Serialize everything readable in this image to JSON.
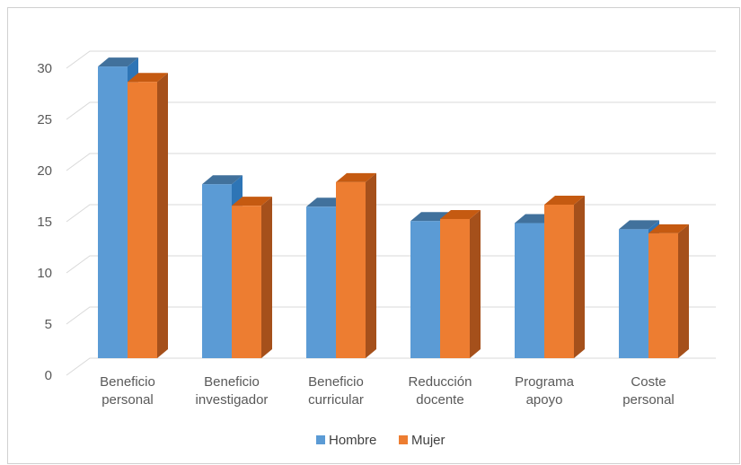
{
  "chart_data": {
    "type": "bar",
    "style": "3d-clustered-column",
    "categories": [
      [
        "Beneficio",
        "personal"
      ],
      [
        "Beneficio",
        "investigador"
      ],
      [
        "Beneficio",
        "curricular"
      ],
      [
        "Reducción",
        "docente"
      ],
      [
        "Programa",
        "apoyo"
      ],
      [
        "Coste",
        "personal"
      ]
    ],
    "series": [
      {
        "name": "Hombre",
        "values": [
          28.5,
          17.0,
          14.8,
          13.4,
          13.2,
          12.6
        ],
        "color": "#5b9bd5",
        "side_color": "#2e75b6",
        "top_color": "#41719c"
      },
      {
        "name": "Mujer",
        "values": [
          27.0,
          14.9,
          17.2,
          13.6,
          15.0,
          12.2
        ],
        "color": "#ed7d31",
        "side_color": "#a5501b",
        "top_color": "#c55a11"
      }
    ],
    "yticks": [
      "0",
      "5",
      "10",
      "15",
      "20",
      "25",
      "30"
    ],
    "ylim": [
      0,
      30
    ],
    "grid": true,
    "legend_position": "bottom"
  }
}
